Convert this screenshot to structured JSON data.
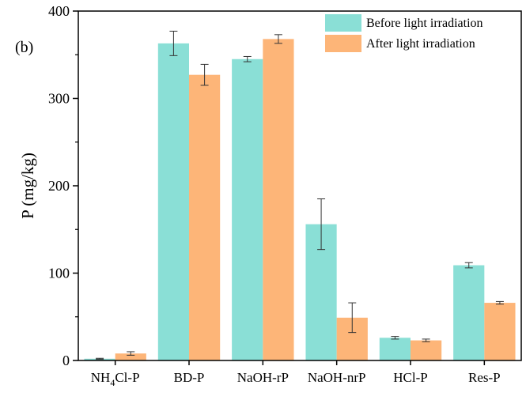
{
  "chart_data": {
    "type": "bar",
    "panel_label": "(b)",
    "categories": [
      "NH4Cl-P",
      "BD-P",
      "NaOH-rP",
      "NaOH-nrP",
      "HCl-P",
      "Res-P"
    ],
    "category_labels": [
      {
        "main": "NH",
        "sub": "4",
        "rest": "Cl-P"
      },
      {
        "main": "BD-P",
        "sub": "",
        "rest": ""
      },
      {
        "main": "NaOH-rP",
        "sub": "",
        "rest": ""
      },
      {
        "main": "NaOH-nrP",
        "sub": "",
        "rest": ""
      },
      {
        "main": "HCl-P",
        "sub": "",
        "rest": ""
      },
      {
        "main": "Res-P",
        "sub": "",
        "rest": ""
      }
    ],
    "series": [
      {
        "name": "Before light irradiation",
        "color": "#8ADFD6",
        "values": [
          2,
          363,
          345,
          156,
          26,
          109
        ],
        "errors": [
          0.5,
          14,
          3,
          29,
          1.5,
          3
        ]
      },
      {
        "name": "After light irradiation",
        "color": "#FDB578",
        "values": [
          8,
          327,
          368,
          49,
          23,
          66
        ],
        "errors": [
          2,
          12,
          5,
          17,
          1.5,
          1.5
        ]
      }
    ],
    "xlabel": "",
    "ylabel": "P (mg/kg)",
    "ylim": [
      0,
      400
    ],
    "yticks": [
      0,
      100,
      200,
      300,
      400
    ],
    "grid": false,
    "legend_position": "top-right"
  }
}
